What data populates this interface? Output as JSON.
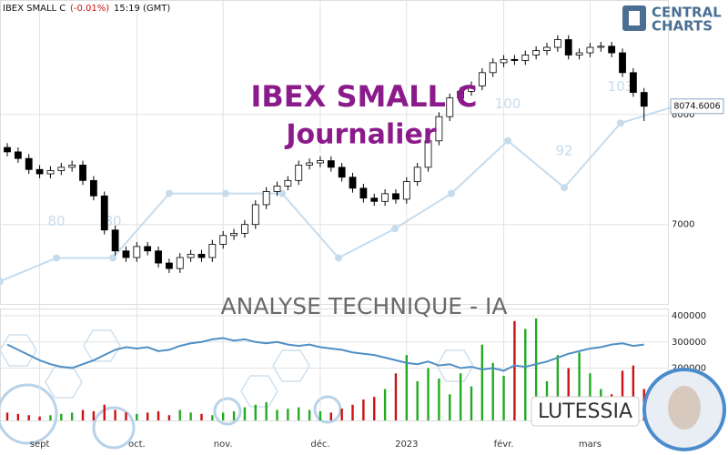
{
  "header": {
    "symbol": "IBEX SMALL C",
    "change": "(-0.01%)",
    "time": "15:19 (GMT)"
  },
  "logo": {
    "line1": "CENTRAL",
    "line2": "CHARTS"
  },
  "watermarks": {
    "title": "IBEX SMALL C",
    "period": "Journalier",
    "analysis": "ANALYSE TECHNIQUE - IA",
    "brand": "LUTESSIA"
  },
  "chart_data": [
    {
      "type": "candlestick",
      "categories": [
        null,
        null,
        null,
        "sept",
        null,
        null,
        null,
        null,
        null,
        null,
        null,
        null,
        "oct.",
        null,
        null,
        null,
        null,
        null,
        null,
        null,
        "nov.",
        null,
        null,
        null,
        null,
        null,
        null,
        null,
        null,
        "déc.",
        null,
        null,
        null,
        null,
        null,
        null,
        null,
        "2023",
        null,
        null,
        null,
        null,
        null,
        null,
        null,
        null,
        "févr.",
        null,
        null,
        null,
        null,
        null,
        null,
        null,
        "mars",
        null,
        null,
        null,
        null,
        null
      ],
      "open": [
        7700,
        7660,
        7600,
        7500,
        7460,
        7490,
        7520,
        7540,
        7400,
        7260,
        6950,
        6760,
        6700,
        6800,
        6760,
        6650,
        6600,
        6700,
        6730,
        6700,
        6820,
        6900,
        6920,
        7000,
        7180,
        7300,
        7350,
        7400,
        7540,
        7560,
        7580,
        7520,
        7430,
        7330,
        7240,
        7210,
        7280,
        7230,
        7390,
        7520,
        7760,
        7980,
        8150,
        8210,
        8260,
        8380,
        8470,
        8500,
        8490,
        8540,
        8580,
        8610,
        8680,
        8540,
        8560,
        8610,
        8620,
        8560,
        8380,
        8200
      ],
      "high": [
        7740,
        7700,
        7640,
        7540,
        7530,
        7560,
        7580,
        7580,
        7440,
        7300,
        6990,
        6800,
        6840,
        6840,
        6800,
        6690,
        6740,
        6770,
        6770,
        6860,
        6940,
        6960,
        7040,
        7220,
        7340,
        7390,
        7440,
        7580,
        7600,
        7620,
        7620,
        7560,
        7470,
        7370,
        7280,
        7320,
        7320,
        7430,
        7560,
        7800,
        8020,
        8190,
        8250,
        8300,
        8420,
        8510,
        8540,
        8540,
        8580,
        8620,
        8650,
        8720,
        8720,
        8600,
        8650,
        8660,
        8660,
        8600,
        8420,
        8240
      ],
      "low": [
        7620,
        7560,
        7460,
        7420,
        7420,
        7450,
        7480,
        7360,
        7220,
        6910,
        6720,
        6660,
        6660,
        6720,
        6610,
        6560,
        6560,
        6660,
        6660,
        6660,
        6780,
        6860,
        6880,
        6960,
        7140,
        7260,
        7310,
        7360,
        7500,
        7520,
        7480,
        7390,
        7290,
        7200,
        7170,
        7170,
        7190,
        7190,
        7350,
        7480,
        7720,
        7940,
        8110,
        8170,
        8220,
        8340,
        8430,
        8450,
        8450,
        8500,
        8540,
        8570,
        8500,
        8500,
        8520,
        8570,
        8520,
        8340,
        8160,
        7940
      ],
      "close": [
        7660,
        7600,
        7500,
        7460,
        7490,
        7520,
        7540,
        7400,
        7260,
        6950,
        6760,
        6700,
        6800,
        6760,
        6650,
        6600,
        6700,
        6730,
        6700,
        6820,
        6900,
        6920,
        7000,
        7180,
        7300,
        7350,
        7400,
        7540,
        7560,
        7580,
        7520,
        7430,
        7330,
        7240,
        7210,
        7280,
        7230,
        7390,
        7520,
        7760,
        7980,
        8150,
        8210,
        8260,
        8380,
        8470,
        8500,
        8490,
        8540,
        8580,
        8610,
        8680,
        8540,
        8560,
        8610,
        8620,
        8560,
        8380,
        8200,
        8074.6
      ],
      "ylim": [
        6270,
        9040
      ],
      "yticks": [
        7000,
        8000
      ],
      "grid": true,
      "up_color": "#ffffff",
      "down_color": "#000000",
      "last_price": 8074.6006
    },
    {
      "type": "bar",
      "values": [
        30000,
        25000,
        20000,
        15000,
        20000,
        25000,
        30000,
        40000,
        35000,
        60000,
        40000,
        30000,
        25000,
        30000,
        35000,
        20000,
        40000,
        30000,
        25000,
        20000,
        30000,
        35000,
        50000,
        60000,
        70000,
        40000,
        45000,
        50000,
        40000,
        35000,
        30000,
        45000,
        60000,
        80000,
        90000,
        120000,
        180000,
        250000,
        150000,
        200000,
        160000,
        100000,
        180000,
        130000,
        290000,
        220000,
        170000,
        380000,
        350000,
        390000,
        150000,
        250000,
        200000,
        260000,
        180000,
        120000,
        100000,
        190000,
        210000,
        120000
      ],
      "line_values": [
        290000,
        270000,
        250000,
        230000,
        215000,
        205000,
        200000,
        215000,
        230000,
        250000,
        270000,
        280000,
        275000,
        280000,
        265000,
        270000,
        285000,
        295000,
        300000,
        310000,
        315000,
        305000,
        310000,
        300000,
        295000,
        300000,
        290000,
        285000,
        290000,
        280000,
        275000,
        270000,
        260000,
        255000,
        250000,
        240000,
        230000,
        220000,
        215000,
        225000,
        210000,
        215000,
        200000,
        205000,
        195000,
        200000,
        190000,
        210000,
        205000,
        215000,
        225000,
        240000,
        255000,
        265000,
        275000,
        280000,
        290000,
        295000,
        285000,
        290000
      ],
      "ylim": [
        0,
        428000
      ],
      "yticks": [
        200000,
        300000,
        400000
      ],
      "grid": true,
      "up_color": "#22aa22",
      "down_color": "#cc1111",
      "line_color": "#4f8fc4"
    },
    {
      "type": "line",
      "values": [
        76,
        80,
        80,
        91,
        91,
        91,
        80,
        85,
        91,
        100,
        92,
        103,
        106
      ],
      "labeled": [
        1,
        2,
        9,
        10,
        11
      ],
      "ylim": [
        72,
        124
      ],
      "color": "#c6dced"
    }
  ]
}
